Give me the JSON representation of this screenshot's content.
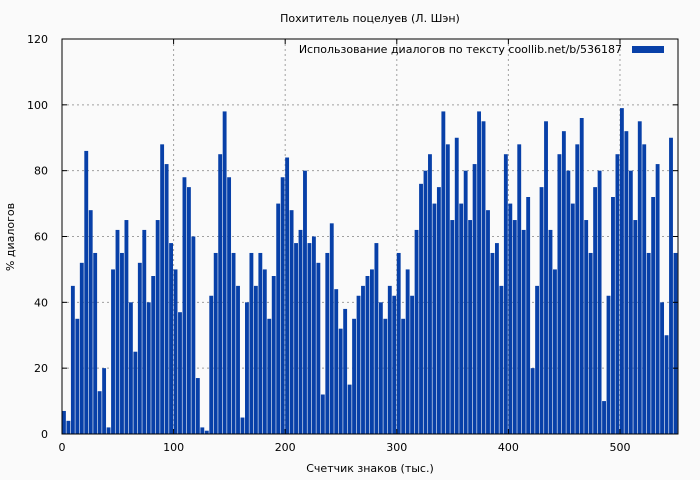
{
  "chart_data": {
    "type": "bar",
    "title": "Похититель поцелуев (Л. Шэн)",
    "xlabel": "Счетчик знаков (тыс.)",
    "ylabel": "% диалогов",
    "legend_label": "Использование диалогов по тексту  coollib.net/b/536187",
    "legend_position": "top-right",
    "grid": true,
    "xlim": [
      0,
      552
    ],
    "ylim": [
      0,
      120
    ],
    "x_ticks": [
      "0",
      "100",
      "200",
      "300",
      "400",
      "500"
    ],
    "y_ticks": [
      "0",
      "20",
      "40",
      "60",
      "80",
      "100",
      "120"
    ],
    "series_color": "#0840a8",
    "background": "#fafafa",
    "x": [
      0,
      4,
      8,
      12,
      16,
      20,
      24,
      28,
      32,
      36,
      40,
      44,
      48,
      52,
      56,
      60,
      64,
      68,
      72,
      76,
      80,
      84,
      88,
      92,
      96,
      100,
      104,
      108,
      112,
      116,
      120,
      124,
      128,
      132,
      136,
      140,
      144,
      148,
      152,
      156,
      160,
      164,
      168,
      172,
      176,
      180,
      184,
      188,
      192,
      196,
      200,
      204,
      208,
      212,
      216,
      220,
      224,
      228,
      232,
      236,
      240,
      244,
      248,
      252,
      256,
      260,
      264,
      268,
      272,
      276,
      280,
      284,
      288,
      292,
      296,
      300,
      304,
      308,
      312,
      316,
      320,
      324,
      328,
      332,
      336,
      340,
      344,
      348,
      352,
      356,
      360,
      364,
      368,
      372,
      376,
      380,
      384,
      388,
      392,
      396,
      400,
      404,
      408,
      412,
      416,
      420,
      424,
      428,
      432,
      436,
      440,
      444,
      448,
      452,
      456,
      460,
      464,
      468,
      472,
      476,
      480,
      484,
      488,
      492,
      496,
      500,
      504,
      508,
      512,
      516,
      520,
      524,
      528,
      532,
      536,
      540,
      544,
      548
    ],
    "values": [
      7,
      4,
      45,
      35,
      52,
      86,
      68,
      55,
      13,
      20,
      2,
      50,
      62,
      55,
      65,
      40,
      25,
      52,
      62,
      40,
      48,
      65,
      88,
      82,
      58,
      50,
      37,
      78,
      75,
      60,
      17,
      2,
      1,
      42,
      55,
      85,
      98,
      78,
      55,
      45,
      5,
      40,
      55,
      45,
      55,
      50,
      35,
      48,
      70,
      78,
      84,
      68,
      58,
      62,
      80,
      58,
      60,
      52,
      12,
      55,
      64,
      44,
      32,
      38,
      15,
      35,
      42,
      45,
      48,
      50,
      58,
      40,
      35,
      45,
      42,
      55,
      35,
      50,
      42,
      62,
      76,
      80,
      85,
      70,
      75,
      98,
      88,
      65,
      90,
      70,
      80,
      65,
      82,
      98,
      95,
      68,
      55,
      58,
      45,
      85,
      70,
      65,
      88,
      62,
      72,
      20,
      45,
      75,
      95,
      62,
      50,
      85,
      92,
      80,
      70,
      88,
      96,
      65,
      55,
      75,
      80,
      10,
      42,
      72,
      85,
      99,
      92,
      80,
      65,
      95,
      88,
      55,
      72,
      82,
      40,
      30,
      90,
      55
    ]
  }
}
